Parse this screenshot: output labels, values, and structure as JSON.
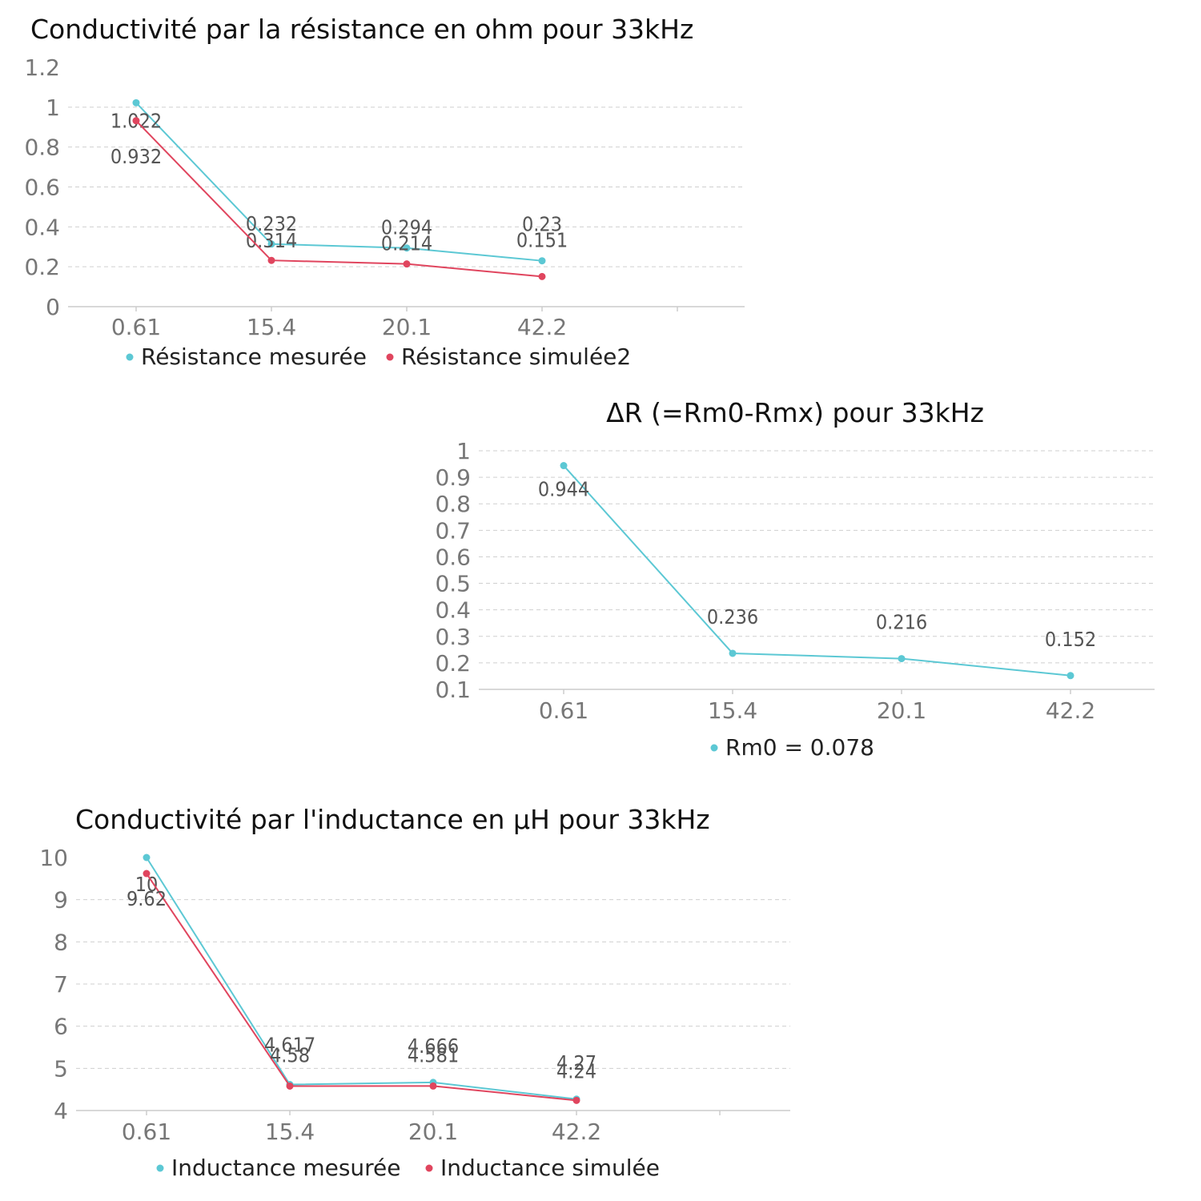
{
  "colors": {
    "series_a": "#5cc8d4",
    "series_b": "#e0455e"
  },
  "chart_data": [
    {
      "type": "line",
      "title": "Conductivité par la résistance en ohm pour 33kHz",
      "categories": [
        "0.61",
        "15.4",
        "20.1",
        "42.2"
      ],
      "ylim": [
        0,
        1.2
      ],
      "yticks": [
        "0",
        "0.2",
        "0.4",
        "0.6",
        "0.8",
        "1",
        "1.2"
      ],
      "grid": true,
      "legend_position": "bottom",
      "series": [
        {
          "name": "Résistance mesurée",
          "values": [
            1.022,
            0.314,
            0.294,
            0.23
          ],
          "labels": [
            "1.022",
            "0.314",
            "0.294",
            "0.23"
          ]
        },
        {
          "name": "Résistance simulée2",
          "values": [
            0.932,
            0.232,
            0.214,
            0.151
          ],
          "labels": [
            "0.932",
            "0.232",
            "0.214",
            "0.151"
          ]
        }
      ]
    },
    {
      "type": "line",
      "title": "ΔR (=Rm0-Rmx) pour 33kHz",
      "categories": [
        "0.61",
        "15.4",
        "20.1",
        "42.2"
      ],
      "ylim": [
        0.1,
        1
      ],
      "yticks": [
        "0.1",
        "0.2",
        "0.3",
        "0.4",
        "0.5",
        "0.6",
        "0.7",
        "0.8",
        "0.9",
        "1"
      ],
      "grid": true,
      "legend_position": "bottom",
      "series": [
        {
          "name": "Rm0 = 0.078",
          "values": [
            0.944,
            0.236,
            0.216,
            0.152
          ],
          "labels": [
            "0.944",
            "0.236",
            "0.216",
            "0.152"
          ]
        }
      ]
    },
    {
      "type": "line",
      "title": "Conductivité par l'inductance en µH pour 33kHz",
      "categories": [
        "0.61",
        "15.4",
        "20.1",
        "42.2"
      ],
      "ylim": [
        4,
        10
      ],
      "yticks": [
        "4",
        "5",
        "6",
        "7",
        "8",
        "9",
        "10"
      ],
      "grid": true,
      "legend_position": "bottom",
      "series": [
        {
          "name": "Inductance mesurée",
          "values": [
            10,
            4.617,
            4.666,
            4.27
          ],
          "labels": [
            "10",
            "4.617",
            "4.666",
            "4.27"
          ]
        },
        {
          "name": "Inductance simulée",
          "values": [
            9.62,
            4.58,
            4.581,
            4.24
          ],
          "labels": [
            "9.62",
            "4.58",
            "4.581",
            "4.24"
          ]
        }
      ]
    }
  ]
}
